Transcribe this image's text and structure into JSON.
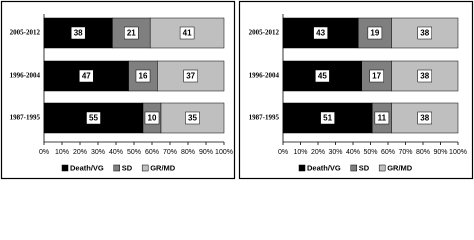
{
  "chart_data": [
    {
      "type": "stacked-bar-horizontal",
      "categories": [
        "2005-2012",
        "1996-2004",
        "1987-1995"
      ],
      "series": [
        {
          "name": "Death/VG",
          "color": "#000000",
          "values": [
            38,
            47,
            55
          ]
        },
        {
          "name": "SD",
          "color": "#7f7f7f",
          "values": [
            21,
            16,
            10
          ]
        },
        {
          "name": "GR/MD",
          "color": "#bfbfbf",
          "values": [
            41,
            37,
            35
          ]
        }
      ],
      "xlim": [
        0,
        100
      ],
      "xticks": [
        {
          "value": 0,
          "label": "0%"
        },
        {
          "value": 10,
          "label": "10%"
        },
        {
          "value": 20,
          "label": "20%"
        },
        {
          "value": 30,
          "label": "30%"
        },
        {
          "value": 40,
          "label": "40%"
        },
        {
          "value": 50,
          "label": "50%"
        },
        {
          "value": 60,
          "label": "60%"
        },
        {
          "value": 70,
          "label": "70%"
        },
        {
          "value": 80,
          "label": "80%"
        },
        {
          "value": 90,
          "label": "90%"
        },
        {
          "value": 100,
          "label": "100%"
        }
      ]
    },
    {
      "type": "stacked-bar-horizontal",
      "categories": [
        "2005-2012",
        "1996-2004",
        "1987-1995"
      ],
      "series": [
        {
          "name": "Death/VG",
          "color": "#000000",
          "values": [
            43,
            45,
            51
          ]
        },
        {
          "name": "SD",
          "color": "#7f7f7f",
          "values": [
            19,
            17,
            11
          ]
        },
        {
          "name": "GR/MD",
          "color": "#bfbfbf",
          "values": [
            38,
            38,
            38
          ]
        }
      ],
      "xlim": [
        0,
        100
      ],
      "xticks": [
        {
          "value": 0,
          "label": "0%"
        },
        {
          "value": 10,
          "label": "10%"
        },
        {
          "value": 20,
          "label": "20%"
        },
        {
          "value": 30,
          "label": "30%"
        },
        {
          "value": 40,
          "label": "40%"
        },
        {
          "value": 50,
          "label": "50%"
        },
        {
          "value": 60,
          "label": "60%"
        },
        {
          "value": 70,
          "label": "70%"
        },
        {
          "value": 80,
          "label": "80%"
        },
        {
          "value": 90,
          "label": "90%"
        },
        {
          "value": 100,
          "label": "100%"
        }
      ]
    }
  ]
}
